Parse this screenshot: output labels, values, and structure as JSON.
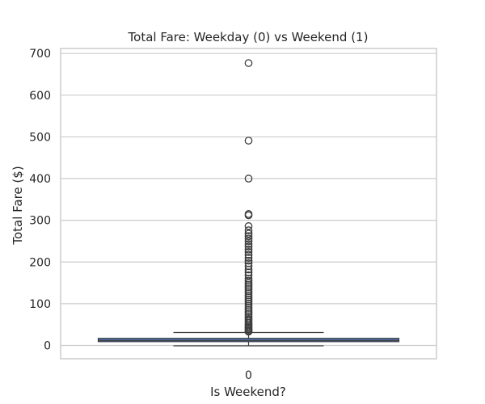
{
  "chart_data": {
    "type": "box",
    "title": "Total Fare: Weekday (0) vs Weekend (1)",
    "xlabel": "Is Weekend?",
    "ylabel": "Total Fare ($)",
    "categories": [
      "0"
    ],
    "ylim": [
      -32,
      712
    ],
    "yticks": [
      0,
      100,
      200,
      300,
      400,
      500,
      600,
      700
    ],
    "grid": true,
    "box_color": "#4c72b0",
    "line_color": "#3d3d3d",
    "grid_color": "#cccccc",
    "boxes": [
      {
        "category": "0",
        "whisker_low": -1,
        "q1": 9,
        "median": 12,
        "q3": 17,
        "whisker_high": 31,
        "outliers": [
          33,
          35,
          38,
          40,
          43,
          46,
          50,
          54,
          58,
          62,
          66,
          70,
          75,
          80,
          85,
          90,
          95,
          100,
          105,
          110,
          115,
          120,
          125,
          130,
          135,
          140,
          145,
          150,
          155,
          160,
          168,
          175,
          182,
          190,
          197,
          203,
          210,
          217,
          224,
          230,
          237,
          243,
          250,
          256,
          262,
          268,
          276,
          286,
          312,
          315,
          400,
          491,
          677
        ]
      }
    ]
  }
}
